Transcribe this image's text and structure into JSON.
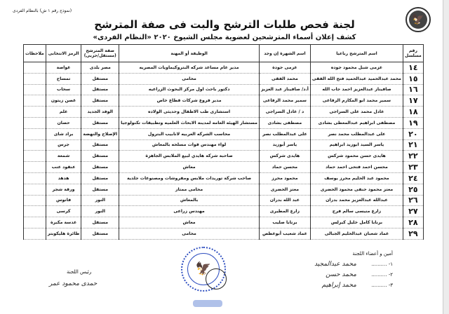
{
  "form_number": "(نموذج رقم ١ ش) بالنظام الفردى",
  "title": "لجنة فحص طلبات الترشح والبت فى صفة المترشح",
  "subtitle": "كشف إعلان أسماء المترشحين لعضوية مجلس الشيوخ ٢٠٢٠ «النظام الفردى»",
  "columns": [
    "رقم مسلسل",
    "اسم المترشح رباعيا",
    "اسم الشهرة إن وجد",
    "الوظيفة أو المهنة",
    "صفة المترشح (مستقل/حزبى)",
    "الرمز الانتخابى",
    "ملاحظات"
  ],
  "rows": [
    [
      "١٤",
      "عزمى شبل محمود جوده",
      "عزمى جودة",
      "مدير عام مساعد شركه البتروكيماويات المصريه",
      "مصر بلدى",
      "غواصة",
      ""
    ],
    [
      "١٥",
      "محمد عبدالحميد عبدالحميد فتح الله الفقى",
      "محمد الفقى",
      "محامى",
      "مستقل",
      "تمساح",
      ""
    ],
    [
      "١٦",
      "صافيناز عبدالعزيز احمد جاب الله",
      "أ.د/ صافيناز عبد العزيز",
      "دكتور باحث اول مركز البحوث الزراعيه",
      "مستقل",
      "سحاب",
      ""
    ],
    [
      "١٧",
      "سمير محمد ابو المكارم الرفاعى",
      "سمير محمد الرفاعى",
      "مدير فروع شركات قطاع خاص",
      "مستقل",
      "غصن زيتون",
      ""
    ],
    [
      "١٨",
      "عادل محمد على السراجى",
      "د / عادل السراجى",
      "استشارى طب الاطفال وحديثى الولاده",
      "الوفد الجديد",
      "علم",
      ""
    ],
    [
      "١٩",
      "مصطفى ابراهيم عبدالمعطى بشادى",
      "مصطفى بشادى",
      "مستشار الهيئه العامه لمدينة الابحاث العلميه وتطبيقات تكنولوجيا",
      "مستقل",
      "حصان",
      ""
    ],
    [
      "٢٠",
      "على عبدالمطلب محمد نصر",
      "على عبدالمطلب نصر",
      "محاسب الشركه العربيه لانابيب البترول",
      "الإصلاح والنهضة",
      "براد شاى",
      ""
    ],
    [
      "٢١",
      "ياسر السيد ابوزيد ابراهيم",
      "ياسر أبوزيد",
      "لواء مهندس قوات مسلحه بالمعاش",
      "مستقل",
      "جرس",
      ""
    ],
    [
      "٢٢",
      "هايدى حسن محمود شركس",
      "هايدى شركس",
      "صاحبة شركة هايدي لبيع الملابس الجاهزة",
      "مستقل",
      "شمعة",
      ""
    ],
    [
      "٢٣",
      "محسن احمد فتحى احمد حماد",
      "محسن حماد",
      "معاش",
      "مستقل",
      "عنقود عنب",
      ""
    ],
    [
      "٢٤",
      "محمود عبد الحليم محرز يوسف",
      "محمود محرز",
      "صاحب شركة توريدات ملابس ومفروشات ومصنوعات جلدية",
      "مستقل",
      "هدهد",
      ""
    ],
    [
      "٢٥",
      "معتز محمود حنفى محمود الحضرى",
      "معتز الحضرى",
      "محامى ممتاز",
      "مستقل",
      "ورقة شجر",
      ""
    ],
    [
      "٢٦",
      "عبدالله عبدالعزيز محمد بدران",
      "عبد الله بدران",
      "بالمعاش",
      "النور",
      "فانوس",
      ""
    ],
    [
      "٢٧",
      "زارع منيسى سالم فرج",
      "زارع المطيرى",
      "مهندس زراعى",
      "النور",
      "كرسى",
      ""
    ],
    [
      "٢٨",
      "برنابا كامل خليل كيرلس",
      "برنابا صليب",
      "معاش",
      "مستقل",
      "عدسة مكبرة",
      ""
    ],
    [
      "٢٩",
      "عماد شعبان عبدالحليم الجبالى",
      "عماد شعيب أبوعطص",
      "محامى",
      "مستقل",
      "طائرة هليكوبتر",
      ""
    ]
  ],
  "footer": {
    "chair_label": "رئيس اللجنة",
    "chair_signature": "حمدى محمود عمر",
    "members_label": "أمين و أعضاء اللجنة",
    "member_lines": [
      "١- ..........",
      "٢- ..........",
      "٣- .........."
    ],
    "member_signatures": [
      "محمد عبدالمجيد",
      "محمد حسن",
      "محمد إبراهيم"
    ]
  },
  "icons": {
    "emblem": "egypt-eagle-emblem",
    "stamp": "official-seal"
  },
  "colors": {
    "stamp": "#3050c0",
    "text": "#111111"
  }
}
